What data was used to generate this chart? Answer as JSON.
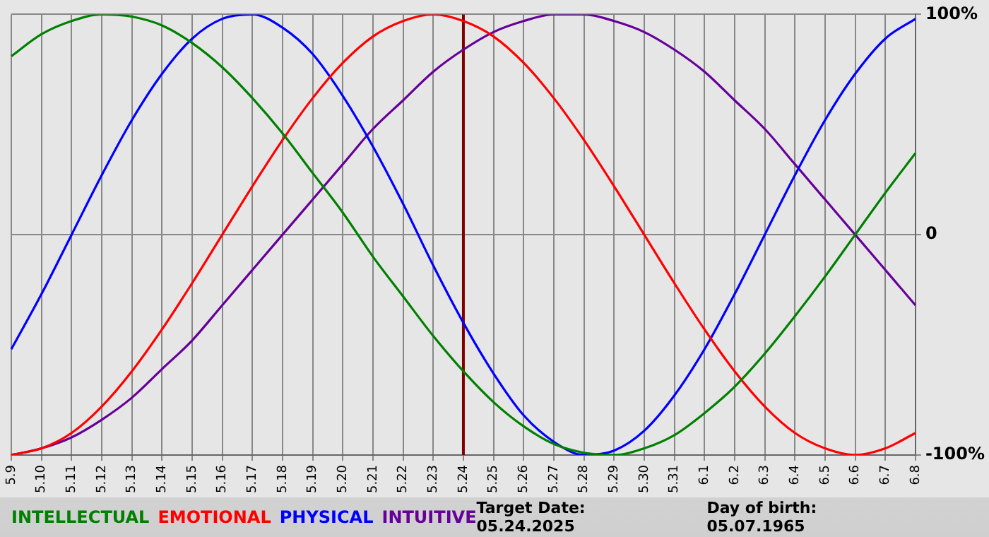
{
  "chart_data": {
    "type": "line",
    "categories": [
      "5.9",
      "5.10",
      "5.11",
      "5.12",
      "5.13",
      "5.14",
      "5.15",
      "5.16",
      "5.17",
      "5.18",
      "5.19",
      "5.20",
      "5.21",
      "5.22",
      "5.23",
      "5.24",
      "5.25",
      "5.26",
      "5.27",
      "5.28",
      "5.29",
      "5.30",
      "5.31",
      "6.1",
      "6.2",
      "6.3",
      "6.4",
      "6.5",
      "6.6",
      "6.7",
      "6.8"
    ],
    "series": [
      {
        "name": "INTELLECTUAL",
        "color": "#008000",
        "values": [
          81,
          91,
          97,
          100,
          99,
          95,
          87,
          76,
          62,
          46,
          28,
          10,
          -10,
          -28,
          -46,
          -62,
          -76,
          -87,
          -95,
          -99,
          -100,
          -97,
          -91,
          -81,
          -69,
          -54,
          -37,
          -19,
          0,
          19,
          37
        ]
      },
      {
        "name": "EMOTIONAL",
        "color": "#ff0000",
        "values": [
          -100,
          -97,
          -90,
          -78,
          -62,
          -43,
          -22,
          0,
          22,
          43,
          62,
          78,
          90,
          97,
          100,
          97,
          90,
          78,
          62,
          43,
          22,
          0,
          -22,
          -43,
          -62,
          -78,
          -90,
          -97,
          -100,
          -97,
          -90
        ]
      },
      {
        "name": "PHYSICAL",
        "color": "#0000ff",
        "values": [
          -52,
          -27,
          0,
          27,
          52,
          73,
          89,
          98,
          100,
          94,
          82,
          63,
          40,
          14,
          -14,
          -40,
          -63,
          -82,
          -94,
          -100,
          -98,
          -89,
          -73,
          -52,
          -27,
          0,
          27,
          52,
          73,
          89,
          98
        ]
      },
      {
        "name": "INTUITIVE",
        "color": "#660099",
        "values": [
          -100,
          -97,
          -92,
          -84,
          -74,
          -61,
          -48,
          -32,
          -16,
          0,
          16,
          32,
          48,
          61,
          74,
          84,
          92,
          97,
          100,
          100,
          97,
          92,
          84,
          74,
          61,
          48,
          32,
          16,
          0,
          -16,
          -32
        ]
      }
    ],
    "ylim": [
      -100,
      100
    ],
    "yticks": [
      {
        "value": -100,
        "label": "-100%"
      },
      0,
      {
        "value": 100,
        "label": "100%"
      }
    ],
    "ref_lines": [
      {
        "axis": "x",
        "value": "5.24",
        "color": "#800000"
      }
    ],
    "annotations": [
      "Target Date: 05.24.2025",
      "Day of birth: 05.07.1965"
    ],
    "grid": true,
    "legend": "bottom",
    "marker": "none",
    "line_style": "solid"
  }
}
